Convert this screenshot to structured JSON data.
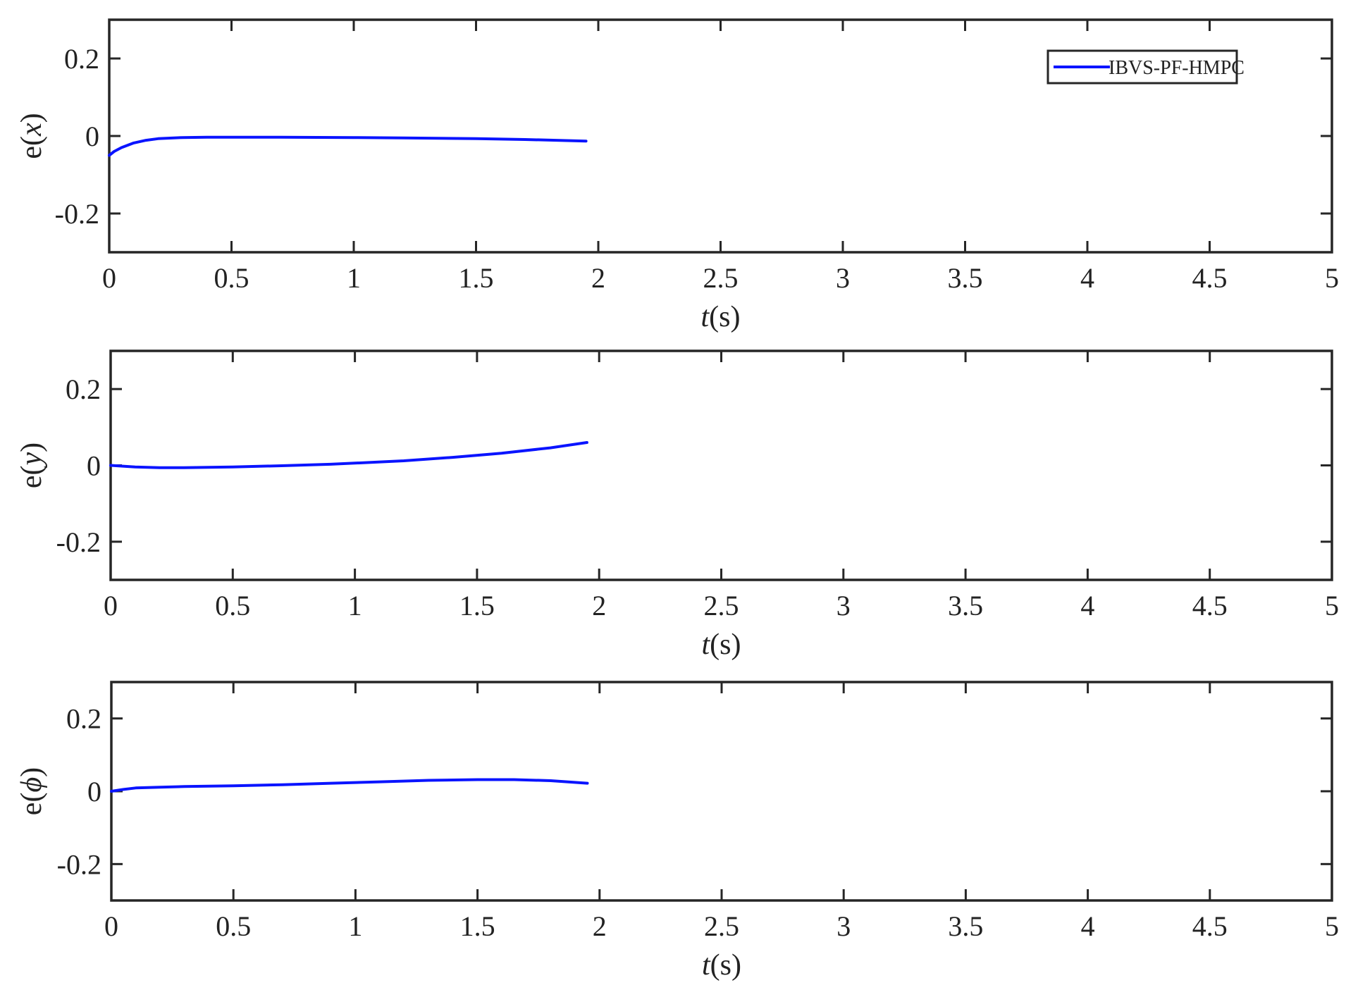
{
  "chart_data": [
    {
      "type": "line",
      "xlabel": {
        "italic": "t",
        "rest": "(s)"
      },
      "ylabel": {
        "prefix": "e(",
        "italic": "x",
        "suffix": ")"
      },
      "xlim": [
        0,
        5
      ],
      "ylim": [
        -0.3,
        0.3
      ],
      "xticks": [
        0,
        0.5,
        1,
        1.5,
        2,
        2.5,
        3,
        3.5,
        4,
        4.5,
        5
      ],
      "xtick_labels": [
        "0",
        "0.5",
        "1",
        "1.5",
        "2",
        "2.5",
        "3",
        "3.5",
        "4",
        "4.5",
        "5"
      ],
      "yticks": [
        -0.2,
        0,
        0.2
      ],
      "ytick_labels": [
        "-0.2",
        "0",
        "0.2"
      ],
      "grid": false,
      "legend": {
        "position": "top-right",
        "entries": [
          "IBVS-PF-HMPC"
        ]
      },
      "series": [
        {
          "name": "IBVS-PF-HMPC",
          "color": "#0a14ff",
          "x": [
            0,
            0.02,
            0.05,
            0.1,
            0.15,
            0.2,
            0.3,
            0.4,
            0.5,
            0.7,
            1.0,
            1.2,
            1.5,
            1.7,
            1.95
          ],
          "y": [
            -0.05,
            -0.04,
            -0.03,
            -0.018,
            -0.011,
            -0.007,
            -0.004,
            -0.003,
            -0.003,
            -0.003,
            -0.004,
            -0.005,
            -0.007,
            -0.009,
            -0.013
          ]
        }
      ]
    },
    {
      "type": "line",
      "xlabel": {
        "italic": "t",
        "rest": "(s)"
      },
      "ylabel": {
        "prefix": "e(",
        "italic": "y",
        "suffix": ")"
      },
      "xlim": [
        0,
        5
      ],
      "ylim": [
        -0.3,
        0.3
      ],
      "xticks": [
        0,
        0.5,
        1,
        1.5,
        2,
        2.5,
        3,
        3.5,
        4,
        4.5,
        5
      ],
      "xtick_labels": [
        "0",
        "0.5",
        "1",
        "1.5",
        "2",
        "2.5",
        "3",
        "3.5",
        "4",
        "4.5",
        "5"
      ],
      "yticks": [
        -0.2,
        0,
        0.2
      ],
      "ytick_labels": [
        "-0.2",
        "0",
        "0.2"
      ],
      "grid": false,
      "series": [
        {
          "color": "#0a14ff",
          "x": [
            0,
            0.05,
            0.1,
            0.2,
            0.3,
            0.5,
            0.7,
            0.9,
            1.0,
            1.2,
            1.4,
            1.6,
            1.8,
            1.95
          ],
          "y": [
            0.0,
            -0.002,
            -0.004,
            -0.006,
            -0.006,
            -0.004,
            -0.001,
            0.003,
            0.006,
            0.012,
            0.021,
            0.032,
            0.046,
            0.06
          ]
        }
      ]
    },
    {
      "type": "line",
      "xlabel": {
        "italic": "t",
        "rest": "(s)"
      },
      "ylabel": {
        "prefix": "e(",
        "italic": "ϕ",
        "suffix": ")"
      },
      "xlim": [
        0,
        5
      ],
      "ylim": [
        -0.3,
        0.3
      ],
      "xticks": [
        0,
        0.5,
        1,
        1.5,
        2,
        2.5,
        3,
        3.5,
        4,
        4.5,
        5
      ],
      "xtick_labels": [
        "0",
        "0.5",
        "1",
        "1.5",
        "2",
        "2.5",
        "3",
        "3.5",
        "4",
        "4.5",
        "5"
      ],
      "yticks": [
        -0.2,
        0,
        0.2
      ],
      "ytick_labels": [
        "-0.2",
        "0",
        "0.2"
      ],
      "grid": false,
      "series": [
        {
          "color": "#0a14ff",
          "x": [
            0,
            0.05,
            0.1,
            0.2,
            0.3,
            0.5,
            0.7,
            0.9,
            1.1,
            1.3,
            1.5,
            1.65,
            1.8,
            1.95
          ],
          "y": [
            0.0,
            0.005,
            0.009,
            0.011,
            0.013,
            0.015,
            0.018,
            0.022,
            0.026,
            0.03,
            0.032,
            0.032,
            0.029,
            0.022
          ]
        }
      ]
    }
  ]
}
